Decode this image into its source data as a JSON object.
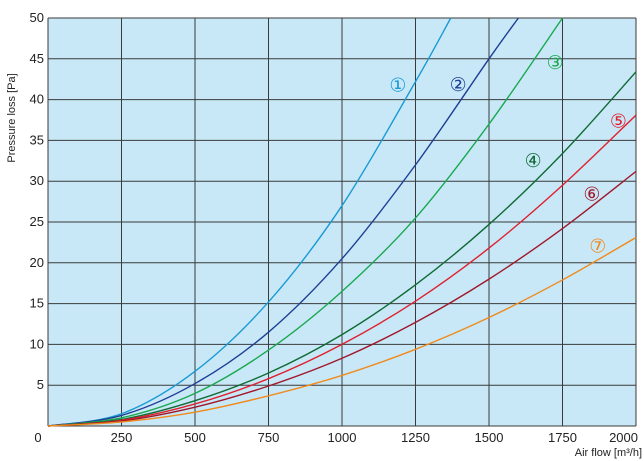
{
  "chart_data": {
    "type": "line",
    "title": "",
    "xlabel": "Air flow [m³/h]",
    "ylabel": "Pressure loss [Pa]",
    "xlim": [
      0,
      2000
    ],
    "ylim": [
      0,
      50
    ],
    "x_ticks": [
      "0",
      "250",
      "500",
      "750",
      "1000",
      "1250",
      "1500",
      "1750",
      "2000"
    ],
    "y_ticks": [
      "5",
      "10",
      "15",
      "20",
      "25",
      "30",
      "35",
      "40",
      "45",
      "50"
    ],
    "grid": true,
    "background": "#c8e8f8",
    "series": [
      {
        "name": "①",
        "color": "#1a9ad4",
        "x": [
          0,
          250,
          500,
          750,
          1000,
          1250,
          1370
        ],
        "y": [
          0,
          1.5,
          6.7,
          15.2,
          27.0,
          42.2,
          50
        ]
      },
      {
        "name": "②",
        "color": "#1e3f94",
        "x": [
          0,
          250,
          500,
          750,
          1000,
          1250,
          1500,
          1600
        ],
        "y": [
          0,
          1.3,
          5.2,
          11.5,
          20.5,
          32.0,
          45.0,
          50
        ]
      },
      {
        "name": "③",
        "color": "#1aa84e",
        "x": [
          0,
          250,
          500,
          750,
          1000,
          1250,
          1500,
          1750
        ],
        "y": [
          0,
          1.0,
          4.0,
          9.3,
          16.5,
          25.5,
          37.0,
          50
        ]
      },
      {
        "name": "④",
        "color": "#0f6b33",
        "x": [
          0,
          250,
          500,
          750,
          1000,
          1250,
          1500,
          1750,
          2000
        ],
        "y": [
          0,
          0.8,
          3.1,
          6.5,
          11.2,
          17.3,
          24.7,
          33.4,
          43.4
        ]
      },
      {
        "name": "⑤",
        "color": "#e0202e",
        "x": [
          0,
          250,
          500,
          750,
          1000,
          1250,
          1500,
          1750,
          2000
        ],
        "y": [
          0,
          0.7,
          2.7,
          5.8,
          10.0,
          15.3,
          21.8,
          29.5,
          38.1
        ]
      },
      {
        "name": "⑥",
        "color": "#a0182a",
        "x": [
          0,
          250,
          500,
          750,
          1000,
          1250,
          1500,
          1750,
          2000
        ],
        "y": [
          0,
          0.6,
          2.3,
          4.9,
          8.3,
          12.7,
          18.0,
          24.2,
          31.2
        ]
      },
      {
        "name": "⑦",
        "color": "#f08a1c",
        "x": [
          0,
          250,
          500,
          750,
          1000,
          1250,
          1500,
          1750,
          2000
        ],
        "y": [
          0,
          0.5,
          1.7,
          3.7,
          6.2,
          9.4,
          13.3,
          17.9,
          23.1
        ]
      }
    ],
    "curve_labels": [
      {
        "text": "①",
        "x": 1190,
        "y": 41.7,
        "color": "#1a9ad4"
      },
      {
        "text": "②",
        "x": 1395,
        "y": 41.8,
        "color": "#1e3f94"
      },
      {
        "text": "③",
        "x": 1725,
        "y": 44.5,
        "color": "#1aa84e"
      },
      {
        "text": "④",
        "x": 1650,
        "y": 32.5,
        "color": "#0f6b33"
      },
      {
        "text": "⑤",
        "x": 1940,
        "y": 37.3,
        "color": "#e0202e"
      },
      {
        "text": "⑥",
        "x": 1850,
        "y": 28.4,
        "color": "#a0182a"
      },
      {
        "text": "⑦",
        "x": 1870,
        "y": 22.0,
        "color": "#f08a1c"
      }
    ]
  }
}
